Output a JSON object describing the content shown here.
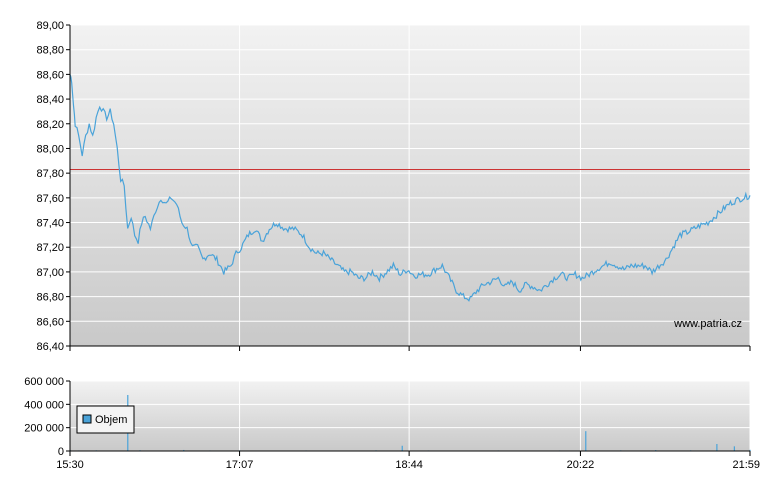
{
  "chart_data": [
    {
      "type": "line",
      "title": "",
      "xlabel": "",
      "ylabel": "",
      "x_ticks": [
        "15:30",
        "17:07",
        "18:44",
        "20:22",
        "21:59"
      ],
      "y_ticks": [
        "89,00",
        "88,80",
        "88,60",
        "88,40",
        "88,20",
        "88,00",
        "87,80",
        "87,60",
        "87,40",
        "87,20",
        "87,00",
        "86,80",
        "86,60",
        "86,40"
      ],
      "ylim": [
        86.4,
        89.0
      ],
      "grid": true,
      "reference_line": {
        "value": 87.83,
        "color": "#cc3333"
      },
      "watermark": "www.patria.cz",
      "series": [
        {
          "color": "#4aa3d9",
          "points": [
            [
              "15:30",
              88.6
            ],
            [
              "15:31",
              88.55
            ],
            [
              "15:32",
              88.35
            ],
            [
              "15:33",
              88.2
            ],
            [
              "15:35",
              88.1
            ],
            [
              "15:37",
              87.95
            ],
            [
              "15:39",
              88.1
            ],
            [
              "15:41",
              88.2
            ],
            [
              "15:43",
              88.1
            ],
            [
              "15:45",
              88.25
            ],
            [
              "15:47",
              88.35
            ],
            [
              "15:49",
              88.3
            ],
            [
              "15:51",
              88.25
            ],
            [
              "15:53",
              88.3
            ],
            [
              "15:55",
              88.2
            ],
            [
              "15:57",
              88.0
            ],
            [
              "15:59",
              87.75
            ],
            [
              "16:01",
              87.7
            ],
            [
              "16:03",
              87.35
            ],
            [
              "16:05",
              87.45
            ],
            [
              "16:07",
              87.3
            ],
            [
              "16:09",
              87.25
            ],
            [
              "16:11",
              87.4
            ],
            [
              "16:13",
              87.45
            ],
            [
              "16:16",
              87.35
            ],
            [
              "16:19",
              87.5
            ],
            [
              "16:22",
              87.6
            ],
            [
              "16:25",
              87.55
            ],
            [
              "16:28",
              87.6
            ],
            [
              "16:31",
              87.55
            ],
            [
              "16:34",
              87.4
            ],
            [
              "16:37",
              87.35
            ],
            [
              "16:40",
              87.2
            ],
            [
              "16:43",
              87.2
            ],
            [
              "16:46",
              87.1
            ],
            [
              "16:50",
              87.15
            ],
            [
              "16:54",
              87.1
            ],
            [
              "16:58",
              87.0
            ],
            [
              "17:02",
              87.05
            ],
            [
              "17:05",
              87.15
            ],
            [
              "17:08",
              87.2
            ],
            [
              "17:12",
              87.3
            ],
            [
              "17:16",
              87.35
            ],
            [
              "17:20",
              87.25
            ],
            [
              "17:24",
              87.35
            ],
            [
              "17:28",
              87.4
            ],
            [
              "17:33",
              87.35
            ],
            [
              "17:38",
              87.35
            ],
            [
              "17:43",
              87.3
            ],
            [
              "17:47",
              87.2
            ],
            [
              "17:51",
              87.15
            ],
            [
              "17:55",
              87.15
            ],
            [
              "17:59",
              87.1
            ],
            [
              "18:03",
              87.05
            ],
            [
              "18:07",
              87.0
            ],
            [
              "18:11",
              87.0
            ],
            [
              "18:15",
              86.95
            ],
            [
              "18:19",
              86.95
            ],
            [
              "18:23",
              87.0
            ],
            [
              "18:27",
              86.95
            ],
            [
              "18:31",
              87.0
            ],
            [
              "18:35",
              87.05
            ],
            [
              "18:39",
              86.98
            ],
            [
              "18:43",
              87.02
            ],
            [
              "18:47",
              86.97
            ],
            [
              "18:51",
              86.98
            ],
            [
              "18:55",
              86.98
            ],
            [
              "18:59",
              87.02
            ],
            [
              "19:03",
              87.05
            ],
            [
              "19:07",
              86.95
            ],
            [
              "19:11",
              86.85
            ],
            [
              "19:15",
              86.8
            ],
            [
              "19:19",
              86.78
            ],
            [
              "19:23",
              86.85
            ],
            [
              "19:27",
              86.9
            ],
            [
              "19:31",
              86.92
            ],
            [
              "19:35",
              86.95
            ],
            [
              "19:39",
              86.88
            ],
            [
              "19:43",
              86.92
            ],
            [
              "19:47",
              86.85
            ],
            [
              "19:51",
              86.9
            ],
            [
              "19:55",
              86.88
            ],
            [
              "19:59",
              86.85
            ],
            [
              "20:03",
              86.9
            ],
            [
              "20:07",
              86.95
            ],
            [
              "20:11",
              86.98
            ],
            [
              "20:15",
              86.95
            ],
            [
              "20:19",
              86.98
            ],
            [
              "20:23",
              86.95
            ],
            [
              "20:27",
              86.98
            ],
            [
              "20:31",
              87.02
            ],
            [
              "20:35",
              87.05
            ],
            [
              "20:39",
              87.08
            ],
            [
              "20:43",
              87.05
            ],
            [
              "20:47",
              87.02
            ],
            [
              "20:51",
              87.05
            ],
            [
              "20:55",
              87.05
            ],
            [
              "20:59",
              87.05
            ],
            [
              "21:03",
              87.0
            ],
            [
              "21:07",
              87.05
            ],
            [
              "21:11",
              87.1
            ],
            [
              "21:15",
              87.2
            ],
            [
              "21:19",
              87.3
            ],
            [
              "21:23",
              87.32
            ],
            [
              "21:27",
              87.35
            ],
            [
              "21:31",
              87.38
            ],
            [
              "21:35",
              87.4
            ],
            [
              "21:39",
              87.45
            ],
            [
              "21:43",
              87.5
            ],
            [
              "21:47",
              87.55
            ],
            [
              "21:51",
              87.58
            ],
            [
              "21:55",
              87.6
            ],
            [
              "21:59",
              87.62
            ]
          ]
        }
      ]
    },
    {
      "type": "bar",
      "title": "",
      "x_ticks": [
        "15:30",
        "17:07",
        "18:44",
        "20:22",
        "21:59"
      ],
      "y_ticks": [
        "600 000",
        "400 000",
        "200 000",
        "0"
      ],
      "ylim": [
        0,
        600000
      ],
      "grid": true,
      "legend": {
        "placement": "left",
        "label": "Objem",
        "color": "#4aa3d9"
      },
      "series": [
        {
          "name": "Objem",
          "color": "#4aa3d9",
          "points": [
            [
              "15:30",
              8000
            ],
            [
              "15:35",
              5000
            ],
            [
              "15:45",
              6000
            ],
            [
              "15:55",
              3000
            ],
            [
              "16:03",
              480000
            ],
            [
              "16:10",
              7000
            ],
            [
              "16:20",
              4000
            ],
            [
              "16:35",
              9000
            ],
            [
              "16:50",
              5000
            ],
            [
              "17:07",
              6000
            ],
            [
              "17:25",
              4000
            ],
            [
              "17:45",
              5000
            ],
            [
              "18:05",
              4000
            ],
            [
              "18:25",
              6000
            ],
            [
              "18:40",
              45000
            ],
            [
              "18:55",
              5000
            ],
            [
              "19:15",
              4000
            ],
            [
              "19:35",
              5000
            ],
            [
              "19:55",
              4000
            ],
            [
              "20:10",
              5000
            ],
            [
              "20:25",
              170000
            ],
            [
              "20:45",
              6000
            ],
            [
              "21:05",
              8000
            ],
            [
              "21:25",
              6000
            ],
            [
              "21:40",
              60000
            ],
            [
              "21:50",
              40000
            ],
            [
              "21:59",
              10000
            ]
          ]
        }
      ]
    }
  ]
}
